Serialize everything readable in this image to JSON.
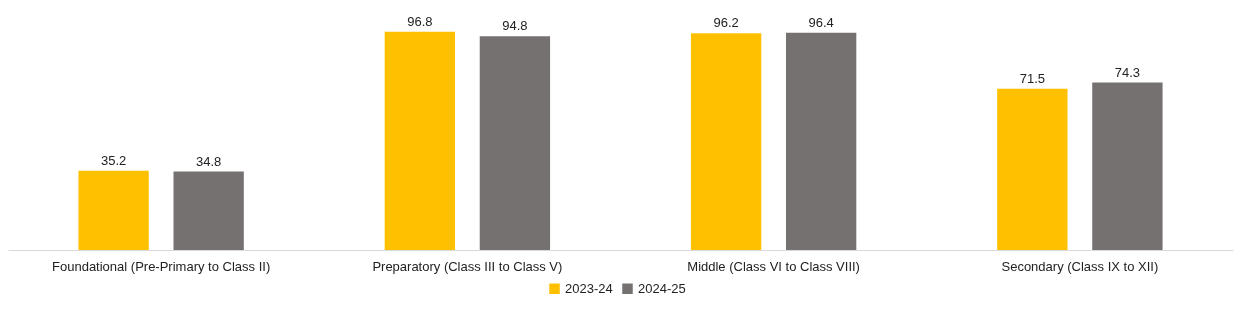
{
  "chart_data": {
    "type": "bar",
    "categories": [
      "Foundational (Pre-Primary to Class II)",
      "Preparatory (Class III to Class V)",
      "Middle (Class VI to Class VIII)",
      "Secondary (Class IX to XII)"
    ],
    "series": [
      {
        "name": "2023-24",
        "color": "#ffc000",
        "values": [
          35.2,
          96.8,
          96.2,
          71.5
        ]
      },
      {
        "name": "2024-25",
        "color": "#767171",
        "values": [
          34.8,
          94.8,
          96.4,
          74.3
        ]
      }
    ],
    "data_labels": true,
    "legend": "bottom",
    "grid": false
  }
}
